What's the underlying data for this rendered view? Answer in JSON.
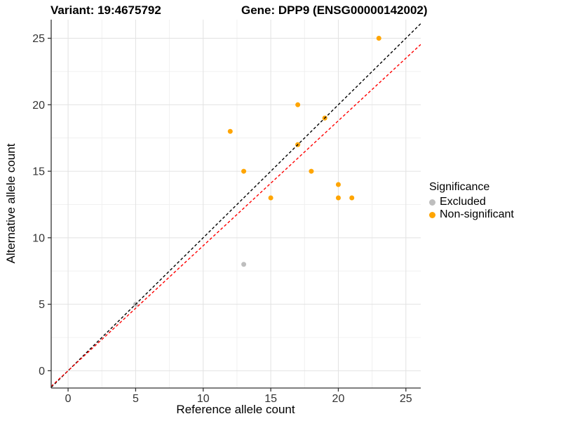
{
  "titles": {
    "variant": "Variant: 19:4675792",
    "gene": "Gene: DPP9 (ENSG00000142002)"
  },
  "axes": {
    "x_label": "Reference allele count",
    "y_label": "Alternative allele count"
  },
  "legend": {
    "title": "Significance",
    "items": [
      {
        "label": "Excluded",
        "color": "#BEBEBE"
      },
      {
        "label": "Non-significant",
        "color": "#FFA500"
      }
    ]
  },
  "chart_data": {
    "type": "scatter",
    "title": "Variant: 19:4675792 / Gene: DPP9 (ENSG00000142002)",
    "xlabel": "Reference allele count",
    "ylabel": "Alternative allele count",
    "x_ticks": [
      0,
      5,
      10,
      15,
      20,
      25
    ],
    "y_ticks": [
      0,
      5,
      10,
      15,
      20,
      25
    ],
    "x_range": [
      -1.25,
      26.1
    ],
    "y_range": [
      -1.3,
      26.4
    ],
    "grid": {
      "major_step": 5,
      "minor_step": 2.5,
      "major_color": "#E2E2E2",
      "minor_color": "#F0F0F0"
    },
    "legend_position": "right",
    "series": [
      {
        "name": "Excluded",
        "color": "#BEBEBE",
        "points": [
          [
            5,
            5
          ],
          [
            13,
            8
          ]
        ]
      },
      {
        "name": "Non-significant",
        "color": "#FFA500",
        "points": [
          [
            12,
            18
          ],
          [
            13,
            15
          ],
          [
            15,
            13
          ],
          [
            17,
            17
          ],
          [
            17,
            20
          ],
          [
            18,
            15
          ],
          [
            19,
            19
          ],
          [
            20,
            13
          ],
          [
            20,
            14
          ],
          [
            21,
            13
          ],
          [
            23,
            25
          ]
        ]
      }
    ],
    "lines": [
      {
        "name": "identity-line",
        "slope": 1,
        "intercept": 0,
        "color": "#000000",
        "dash": "4,3"
      },
      {
        "name": "fitted-ratio-line",
        "slope": 0.94,
        "intercept": 0,
        "color": "#FF0000",
        "dash": "4,3"
      }
    ],
    "axis_color": "#333333",
    "tick_label_color": "#333333"
  }
}
